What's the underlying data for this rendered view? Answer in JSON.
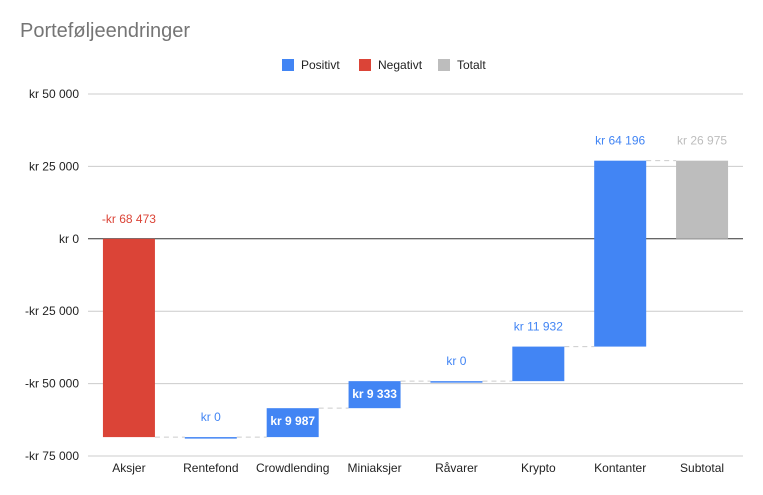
{
  "chart_data": {
    "type": "waterfall",
    "title": "Porteføljeendringer",
    "legend": [
      {
        "name": "Positivt",
        "color": "#4285f4"
      },
      {
        "name": "Negativt",
        "color": "#db4437"
      },
      {
        "name": "Totalt",
        "color": "#bdbdbd"
      }
    ],
    "legend_position": "top",
    "ylim": [
      -75000,
      50000
    ],
    "yticks": [
      {
        "value": 50000,
        "label": "kr  50 000"
      },
      {
        "value": 25000,
        "label": "kr  25 000"
      },
      {
        "value": 0,
        "label": "kr   0"
      },
      {
        "value": -25000,
        "label": "-kr  25 000"
      },
      {
        "value": -50000,
        "label": "-kr  50 000"
      },
      {
        "value": -75000,
        "label": "-kr  75 000"
      }
    ],
    "grid": true,
    "categories": [
      "Aksjer",
      "Rentefond",
      "Crowdlending",
      "Miniaksjer",
      "Råvarer",
      "Krypto",
      "Kontanter",
      "Subtotal"
    ],
    "bars": [
      {
        "category": "Aksjer",
        "start": 0,
        "end": -68473,
        "kind": "negative",
        "label": "-kr  68 473",
        "label_pos": "above"
      },
      {
        "category": "Rentefond",
        "start": -68473,
        "end": -68473,
        "kind": "positive",
        "label": "kr   0",
        "label_pos": "above"
      },
      {
        "category": "Crowdlending",
        "start": -68473,
        "end": -58486,
        "kind": "positive",
        "label": "kr  9 987",
        "label_pos": "inside"
      },
      {
        "category": "Miniaksjer",
        "start": -58486,
        "end": -49153,
        "kind": "positive",
        "label": "kr  9 333",
        "label_pos": "inside"
      },
      {
        "category": "Råvarer",
        "start": -49153,
        "end": -49153,
        "kind": "positive",
        "label": "kr   0",
        "label_pos": "above"
      },
      {
        "category": "Krypto",
        "start": -49153,
        "end": -37221,
        "kind": "positive",
        "label": "kr  11 932",
        "label_pos": "above"
      },
      {
        "category": "Kontanter",
        "start": -37221,
        "end": 26975,
        "kind": "positive",
        "label": "kr  64 196",
        "label_pos": "above"
      },
      {
        "category": "Subtotal",
        "start": 0,
        "end": 26975,
        "kind": "total",
        "label": "kr  26 975",
        "label_pos": "above"
      }
    ]
  }
}
